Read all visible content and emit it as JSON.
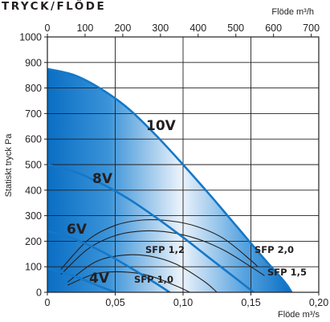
{
  "chart_data": {
    "type": "line",
    "title": "TRYCK/FLÖDE",
    "xlabel": "Flöde m³/s",
    "x2label": "Flöde m³/h",
    "ylabel": "Statiskt tryck Pa",
    "xlim": [
      0,
      0.2
    ],
    "ylim": [
      0,
      1000
    ],
    "x2lim": [
      0,
      720
    ],
    "xticks": [
      "0",
      "0,05",
      "0,10",
      "0,15",
      "0,20"
    ],
    "x2ticks": [
      "0",
      "100",
      "200",
      "300",
      "400",
      "500",
      "600",
      "700"
    ],
    "yticks": [
      "0",
      "100",
      "200",
      "300",
      "400",
      "500",
      "600",
      "700",
      "800",
      "900",
      "1000"
    ],
    "grid": true,
    "colors": {
      "fan": "#1478c8",
      "area": "#1478c8",
      "sfp": "#231f20"
    },
    "series": [
      {
        "name": "10V",
        "points": [
          [
            0,
            875
          ],
          [
            0.02,
            850
          ],
          [
            0.04,
            795
          ],
          [
            0.06,
            718
          ],
          [
            0.08,
            615
          ],
          [
            0.1,
            500
          ],
          [
            0.12,
            380
          ],
          [
            0.14,
            255
          ],
          [
            0.16,
            130
          ],
          [
            0.175,
            40
          ],
          [
            0.18,
            0
          ]
        ]
      },
      {
        "name": "8V",
        "points": [
          [
            0,
            500
          ],
          [
            0.02,
            472
          ],
          [
            0.04,
            425
          ],
          [
            0.06,
            365
          ],
          [
            0.08,
            293
          ],
          [
            0.1,
            215
          ],
          [
            0.12,
            132
          ],
          [
            0.14,
            50
          ],
          [
            0.152,
            0
          ]
        ]
      },
      {
        "name": "6V",
        "points": [
          [
            0,
            240
          ],
          [
            0.02,
            208
          ],
          [
            0.04,
            160
          ],
          [
            0.06,
            100
          ],
          [
            0.08,
            35
          ],
          [
            0.09,
            0
          ]
        ]
      },
      {
        "name": "4V",
        "points": [
          [
            0,
            92
          ],
          [
            0.01,
            80
          ],
          [
            0.02,
            63
          ],
          [
            0.03,
            42
          ],
          [
            0.04,
            20
          ],
          [
            0.05,
            0
          ]
        ]
      }
    ],
    "sfp_curves": [
      {
        "name": "SFP 2,0",
        "points": [
          [
            0.01,
            90
          ],
          [
            0.03,
            205
          ],
          [
            0.05,
            262
          ],
          [
            0.07,
            283
          ],
          [
            0.09,
            280
          ],
          [
            0.11,
            258
          ],
          [
            0.13,
            210
          ],
          [
            0.15,
            125
          ],
          [
            0.155,
            100
          ]
        ]
      },
      {
        "name": "SFP 1,5",
        "points": [
          [
            0.01,
            70
          ],
          [
            0.03,
            170
          ],
          [
            0.05,
            222
          ],
          [
            0.07,
            240
          ],
          [
            0.09,
            235
          ],
          [
            0.11,
            210
          ],
          [
            0.13,
            165
          ],
          [
            0.15,
            100
          ],
          [
            0.16,
            65
          ]
        ]
      },
      {
        "name": "SFP 1,2",
        "points": [
          [
            0.015,
            40
          ],
          [
            0.035,
            118
          ],
          [
            0.055,
            145
          ],
          [
            0.075,
            142
          ],
          [
            0.095,
            110
          ],
          [
            0.115,
            45
          ],
          [
            0.125,
            0
          ]
        ]
      },
      {
        "name": "SFP 1,0",
        "points": [
          [
            0.015,
            28
          ],
          [
            0.035,
            72
          ],
          [
            0.055,
            80
          ],
          [
            0.075,
            65
          ],
          [
            0.095,
            25
          ],
          [
            0.105,
            0
          ]
        ]
      }
    ],
    "labels": {
      "v10": "10V",
      "v8": "8V",
      "v6": "6V",
      "v4": "4V",
      "sfp20": "SFP 2,0",
      "sfp15": "SFP 1,5",
      "sfp12": "SFP 1,2",
      "sfp10": "SFP 1,0"
    }
  }
}
